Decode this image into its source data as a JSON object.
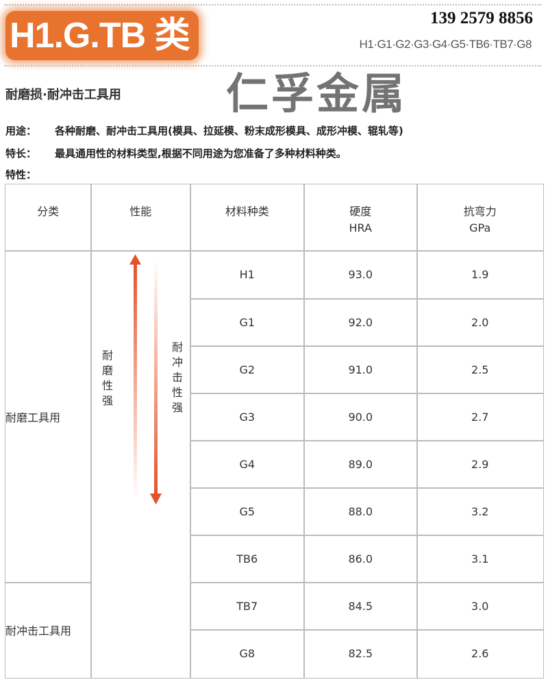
{
  "header": {
    "logo_text": "H1.G.TB 类",
    "phone": "139 2579 8856",
    "grades": "H1·G1·G2·G3·G4·G5·TB6·TB7·G8"
  },
  "subtitle": "耐磨损·耐冲击工具用",
  "info": [
    {
      "key": "用途：",
      "value": "各种耐磨、耐冲击工具用(模具、拉延模、粉末成形模具、成形冲模、辊轧等)"
    },
    {
      "key": "特长：",
      "value": "最具通用性的材料类型,根据不同用途为您准备了多种材料种类。"
    },
    {
      "key": "特性：",
      "value": ""
    }
  ],
  "table": {
    "headers": [
      "分类",
      "性能",
      "材料种类",
      "硬度\nHRA",
      "抗弯力\nGPa"
    ],
    "groups": [
      "耐磨工具用",
      "耐冲击工具用"
    ],
    "perf_left": "耐磨性强",
    "perf_right": "耐冲击性强",
    "rows": [
      {
        "grade": "H1",
        "hra": "93.0",
        "gpa": "1.9"
      },
      {
        "grade": "G1",
        "hra": "92.0",
        "gpa": "2.0"
      },
      {
        "grade": "G2",
        "hra": "91.0",
        "gpa": "2.5"
      },
      {
        "grade": "G3",
        "hra": "90.0",
        "gpa": "2.7"
      },
      {
        "grade": "G4",
        "hra": "89.0",
        "gpa": "2.9"
      },
      {
        "grade": "G5",
        "hra": "88.0",
        "gpa": "3.2"
      },
      {
        "grade": "TB6",
        "hra": "86.0",
        "gpa": "3.1"
      },
      {
        "grade": "TB7",
        "hra": "84.5",
        "gpa": "3.0"
      },
      {
        "grade": "G8",
        "hra": "82.5",
        "gpa": "2.6"
      }
    ]
  },
  "watermark": "仁孚金属",
  "colors": {
    "accent": "#e8732e",
    "arrow": "#e4522a"
  }
}
